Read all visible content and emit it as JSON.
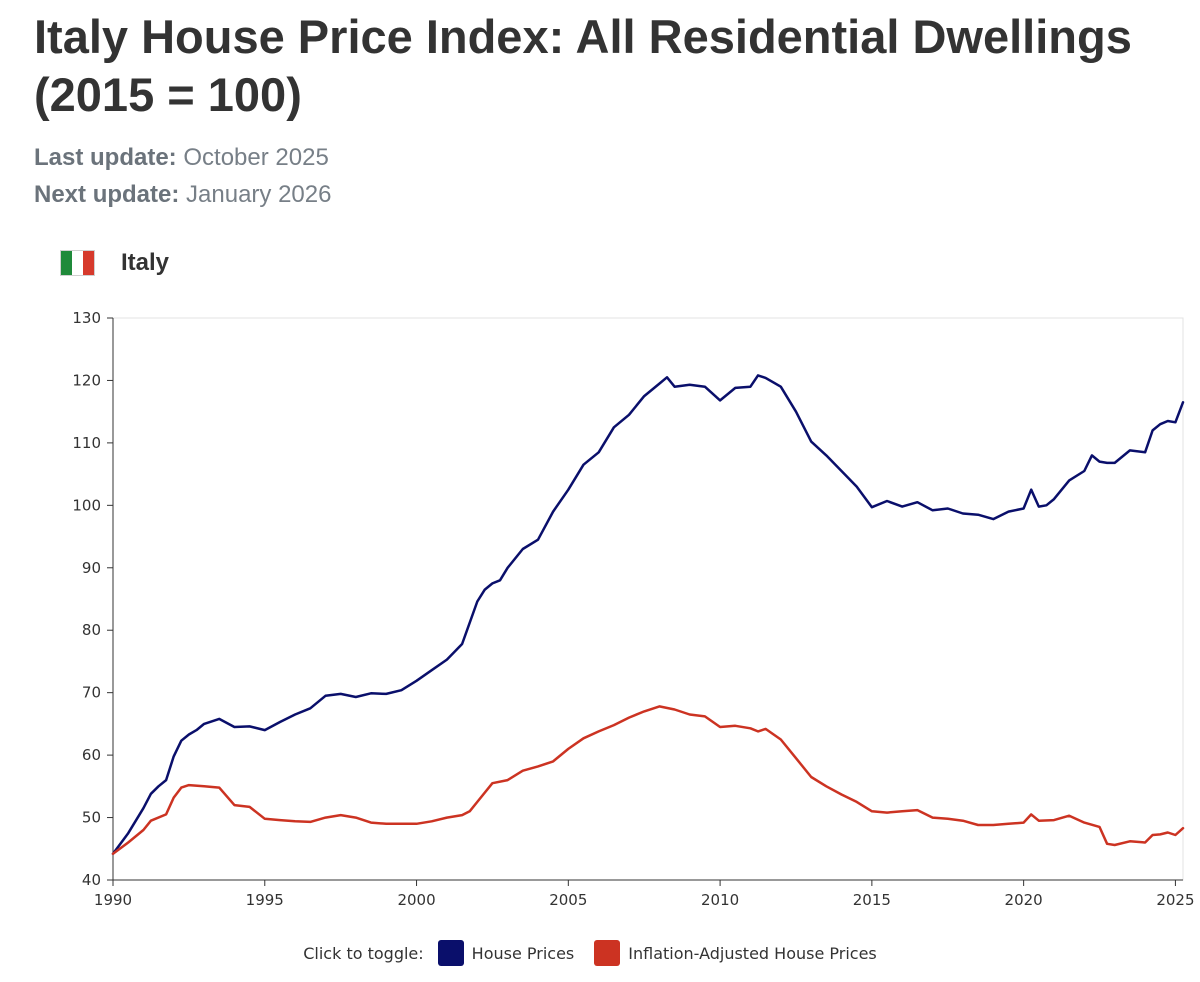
{
  "header": {
    "title": "Italy House Price Index: All Residential Dwellings (2015 = 100)",
    "last_update_label": "Last update:",
    "last_update_value": "October 2025",
    "next_update_label": "Next update:",
    "next_update_value": "January 2026"
  },
  "country": {
    "name": "Italy",
    "flag_colors": [
      "#1f8a3a",
      "#ffffff",
      "#d63a2c"
    ]
  },
  "legend": {
    "toggle_label": "Click to toggle:"
  },
  "chart_data": {
    "type": "line",
    "title": "",
    "xlabel": "",
    "ylabel": "",
    "xlim": [
      1990,
      2025.25
    ],
    "ylim": [
      40,
      130
    ],
    "x_ticks": [
      "1990",
      "1995",
      "2000",
      "2005",
      "2010",
      "2015",
      "2020",
      "2025"
    ],
    "y_ticks": [
      "40",
      "50",
      "60",
      "70",
      "80",
      "90",
      "100",
      "110",
      "120",
      "130"
    ],
    "grid": false,
    "legend_position": "bottom-center",
    "series": [
      {
        "name": "House Prices",
        "color": "#0a0f6b",
        "x": [
          1990,
          1990.5,
          1991,
          1991.25,
          1991.5,
          1991.75,
          1992,
          1992.25,
          1992.5,
          1992.75,
          1993,
          1993.5,
          1994,
          1994.5,
          1995,
          1995.5,
          1996,
          1996.5,
          1997,
          1997.5,
          1998,
          1998.5,
          1999,
          1999.5,
          2000,
          2000.5,
          2001,
          2001.5,
          2002,
          2002.25,
          2002.5,
          2002.75,
          2003,
          2003.5,
          2004,
          2004.5,
          2005,
          2005.5,
          2006,
          2006.5,
          2007,
          2007.5,
          2008,
          2008.25,
          2008.5,
          2009,
          2009.5,
          2010,
          2010.5,
          2011,
          2011.25,
          2011.5,
          2012,
          2012.5,
          2013,
          2013.5,
          2014,
          2014.5,
          2015,
          2015.5,
          2016,
          2016.5,
          2017,
          2017.5,
          2018,
          2018.5,
          2019,
          2019.5,
          2020,
          2020.25,
          2020.5,
          2020.75,
          2021,
          2021.5,
          2022,
          2022.25,
          2022.5,
          2022.75,
          2023,
          2023.5,
          2024,
          2024.25,
          2024.5,
          2024.75,
          2025,
          2025.25
        ],
        "values": [
          44.2,
          47.5,
          51.5,
          53.8,
          55.0,
          56.0,
          59.8,
          62.3,
          63.3,
          64.0,
          65.0,
          65.8,
          64.5,
          64.6,
          64.0,
          65.3,
          66.5,
          67.5,
          69.5,
          69.8,
          69.3,
          69.9,
          69.8,
          70.4,
          71.9,
          73.6,
          75.3,
          77.8,
          84.6,
          86.5,
          87.5,
          88.0,
          90.0,
          93.0,
          94.5,
          99.0,
          102.5,
          106.5,
          108.5,
          112.5,
          114.5,
          117.5,
          119.5,
          120.5,
          119.0,
          119.3,
          119.0,
          116.8,
          118.8,
          119.0,
          120.8,
          120.4,
          119.0,
          115.0,
          110.2,
          108.0,
          105.5,
          103.0,
          99.7,
          100.7,
          99.8,
          100.5,
          99.2,
          99.5,
          98.7,
          98.5,
          97.8,
          99.0,
          99.5,
          102.5,
          99.8,
          100.0,
          101.0,
          104.0,
          105.5,
          108.0,
          107.0,
          106.8,
          106.8,
          108.8,
          108.5,
          112.0,
          113.0,
          113.5,
          113.3,
          116.5
        ]
      },
      {
        "name": "Inflation-Adjusted House Prices",
        "color": "#cc3322",
        "x": [
          1990,
          1990.5,
          1991,
          1991.25,
          1991.75,
          1992,
          1992.25,
          1992.5,
          1993,
          1993.5,
          1994,
          1994.5,
          1995,
          1995.5,
          1996,
          1996.5,
          1997,
          1997.5,
          1998,
          1998.5,
          1999,
          1999.5,
          2000,
          2000.5,
          2001,
          2001.5,
          2001.75,
          2002,
          2002.5,
          2003,
          2003.5,
          2004,
          2004.5,
          2005,
          2005.5,
          2006,
          2006.5,
          2007,
          2007.5,
          2008,
          2008.5,
          2009,
          2009.5,
          2010,
          2010.5,
          2011,
          2011.25,
          2011.5,
          2012,
          2012.5,
          2013,
          2013.5,
          2014,
          2014.5,
          2015,
          2015.5,
          2016,
          2016.5,
          2017,
          2017.5,
          2018,
          2018.5,
          2019,
          2019.5,
          2020,
          2020.25,
          2020.5,
          2021,
          2021.5,
          2022,
          2022.5,
          2022.75,
          2023,
          2023.5,
          2024,
          2024.25,
          2024.5,
          2024.75,
          2025,
          2025.25
        ],
        "values": [
          44.2,
          46.0,
          48.0,
          49.5,
          50.5,
          53.2,
          54.8,
          55.2,
          55.0,
          54.8,
          52.0,
          51.7,
          49.8,
          49.6,
          49.4,
          49.3,
          50.0,
          50.4,
          50.0,
          49.2,
          49.0,
          49.0,
          49.0,
          49.4,
          50.0,
          50.4,
          51.0,
          52.5,
          55.5,
          56.0,
          57.5,
          58.2,
          59.0,
          61.0,
          62.7,
          63.8,
          64.8,
          66.0,
          67.0,
          67.8,
          67.3,
          66.5,
          66.2,
          64.5,
          64.7,
          64.3,
          63.8,
          64.2,
          62.5,
          59.5,
          56.5,
          55.0,
          53.7,
          52.5,
          51.0,
          50.8,
          51.0,
          51.2,
          50.0,
          49.8,
          49.5,
          48.8,
          48.8,
          49.0,
          49.2,
          50.5,
          49.5,
          49.6,
          50.3,
          49.2,
          48.5,
          45.8,
          45.6,
          46.2,
          46.0,
          47.2,
          47.3,
          47.6,
          47.2,
          48.3
        ]
      }
    ]
  }
}
